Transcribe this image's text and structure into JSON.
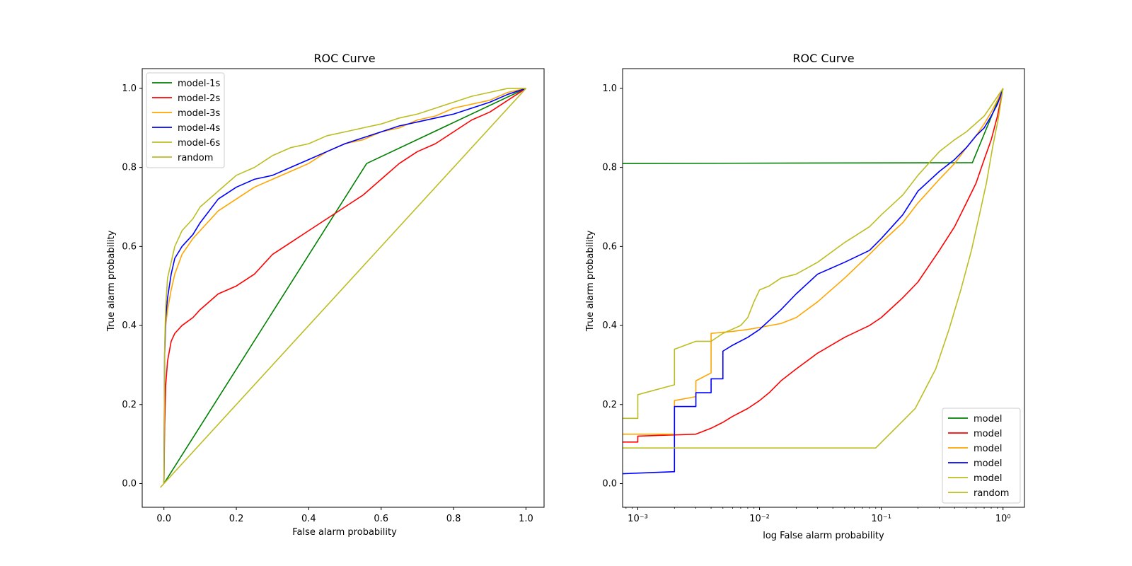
{
  "chart_data": [
    {
      "type": "line",
      "title": "ROC Curve",
      "xlabel": "False alarm probability",
      "ylabel": "True alarm probability",
      "xscale": "linear",
      "xlim": [
        -0.06,
        1.05
      ],
      "ylim": [
        -0.06,
        1.05
      ],
      "xticks": [
        0.0,
        0.2,
        0.4,
        0.6,
        0.8,
        1.0
      ],
      "xtick_labels": [
        "0.0",
        "0.2",
        "0.4",
        "0.6",
        "0.8",
        "1.0"
      ],
      "yticks": [
        0.0,
        0.2,
        0.4,
        0.6,
        0.8,
        1.0
      ],
      "ytick_labels": [
        "0.0",
        "0.2",
        "0.4",
        "0.6",
        "0.8",
        "1.0"
      ],
      "legend_position": "top-left",
      "series": [
        {
          "name": "model-1s",
          "color": "#008000",
          "x": [
            0.0,
            0.56,
            1.0
          ],
          "y": [
            0.0,
            0.81,
            1.0
          ]
        },
        {
          "name": "model-2s",
          "color": "#ff0000",
          "x": [
            0.0,
            0.002,
            0.005,
            0.01,
            0.02,
            0.03,
            0.05,
            0.08,
            0.1,
            0.15,
            0.2,
            0.25,
            0.3,
            0.35,
            0.4,
            0.45,
            0.5,
            0.55,
            0.6,
            0.65,
            0.7,
            0.75,
            0.8,
            0.85,
            0.9,
            0.95,
            1.0
          ],
          "y": [
            0.0,
            0.15,
            0.25,
            0.31,
            0.36,
            0.38,
            0.4,
            0.42,
            0.44,
            0.48,
            0.5,
            0.53,
            0.58,
            0.61,
            0.64,
            0.67,
            0.7,
            0.73,
            0.77,
            0.81,
            0.84,
            0.86,
            0.89,
            0.92,
            0.94,
            0.97,
            1.0
          ]
        },
        {
          "name": "model-3s",
          "color": "#ffa500",
          "x": [
            0.0,
            0.002,
            0.005,
            0.01,
            0.02,
            0.03,
            0.05,
            0.08,
            0.1,
            0.15,
            0.2,
            0.25,
            0.3,
            0.35,
            0.4,
            0.45,
            0.5,
            0.55,
            0.6,
            0.65,
            0.7,
            0.75,
            0.8,
            0.85,
            0.9,
            0.95,
            1.0
          ],
          "y": [
            0.0,
            0.33,
            0.4,
            0.44,
            0.49,
            0.53,
            0.58,
            0.62,
            0.64,
            0.69,
            0.72,
            0.75,
            0.77,
            0.79,
            0.81,
            0.84,
            0.86,
            0.87,
            0.89,
            0.9,
            0.92,
            0.93,
            0.95,
            0.96,
            0.97,
            0.99,
            1.0
          ]
        },
        {
          "name": "model-4s",
          "color": "#0000ff",
          "x": [
            0.0,
            0.002,
            0.005,
            0.01,
            0.02,
            0.03,
            0.05,
            0.08,
            0.1,
            0.15,
            0.2,
            0.25,
            0.3,
            0.35,
            0.4,
            0.45,
            0.5,
            0.55,
            0.6,
            0.65,
            0.7,
            0.75,
            0.8,
            0.85,
            0.9,
            0.95,
            1.0
          ],
          "y": [
            0.0,
            0.33,
            0.42,
            0.47,
            0.53,
            0.57,
            0.6,
            0.63,
            0.66,
            0.72,
            0.75,
            0.77,
            0.78,
            0.8,
            0.82,
            0.84,
            0.86,
            0.875,
            0.89,
            0.905,
            0.915,
            0.925,
            0.935,
            0.95,
            0.965,
            0.985,
            1.0
          ]
        },
        {
          "name": "model-6s",
          "color": "#bcbd22",
          "x": [
            0.0,
            0.002,
            0.005,
            0.01,
            0.02,
            0.03,
            0.05,
            0.08,
            0.1,
            0.15,
            0.2,
            0.25,
            0.3,
            0.35,
            0.4,
            0.45,
            0.5,
            0.55,
            0.6,
            0.65,
            0.7,
            0.75,
            0.8,
            0.85,
            0.9,
            0.95,
            1.0
          ],
          "y": [
            0.0,
            0.35,
            0.45,
            0.52,
            0.56,
            0.6,
            0.64,
            0.67,
            0.7,
            0.74,
            0.78,
            0.8,
            0.83,
            0.85,
            0.86,
            0.88,
            0.89,
            0.9,
            0.91,
            0.925,
            0.935,
            0.95,
            0.965,
            0.98,
            0.99,
            1.0,
            1.0
          ]
        },
        {
          "name": "random",
          "color": "#bcbd22",
          "x": [
            -0.01,
            1.0
          ],
          "y": [
            -0.01,
            1.0
          ]
        }
      ]
    },
    {
      "type": "line",
      "title": "ROC Curve",
      "xlabel": "log False alarm probability",
      "ylabel": "True alarm probability",
      "xscale": "log",
      "xlim": [
        0.00075,
        1.5
      ],
      "ylim": [
        -0.06,
        1.05
      ],
      "xticks": [
        0.001,
        0.01,
        0.1,
        1.0
      ],
      "xtick_labels": [
        "10⁻³",
        "10⁻²",
        "10⁻¹",
        "10⁰"
      ],
      "yticks": [
        0.0,
        0.2,
        0.4,
        0.6,
        0.8,
        1.0
      ],
      "ytick_labels": [
        "0.0",
        "0.2",
        "0.4",
        "0.6",
        "0.8",
        "1.0"
      ],
      "legend_position": "bottom-right",
      "series": [
        {
          "name": "model",
          "color": "#008000",
          "x": [
            0.00075,
            0.56,
            1.0
          ],
          "y": [
            0.81,
            0.812,
            1.0
          ]
        },
        {
          "name": "model",
          "color": "#ff0000",
          "x": [
            0.00075,
            0.001,
            0.001,
            0.003,
            0.004,
            0.005,
            0.006,
            0.008,
            0.01,
            0.012,
            0.015,
            0.02,
            0.03,
            0.05,
            0.08,
            0.1,
            0.15,
            0.2,
            0.3,
            0.4,
            0.5,
            0.6,
            0.7,
            0.8,
            0.9,
            1.0
          ],
          "y": [
            0.105,
            0.105,
            0.12,
            0.125,
            0.14,
            0.155,
            0.17,
            0.19,
            0.21,
            0.23,
            0.26,
            0.29,
            0.33,
            0.37,
            0.4,
            0.42,
            0.47,
            0.51,
            0.59,
            0.65,
            0.71,
            0.76,
            0.82,
            0.87,
            0.93,
            1.0
          ]
        },
        {
          "name": "model",
          "color": "#ffa500",
          "x": [
            0.00075,
            0.002,
            0.002,
            0.003,
            0.003,
            0.004,
            0.004,
            0.006,
            0.008,
            0.01,
            0.015,
            0.02,
            0.03,
            0.05,
            0.08,
            0.1,
            0.15,
            0.2,
            0.3,
            0.4,
            0.5,
            0.6,
            0.7,
            0.8,
            0.9,
            1.0
          ],
          "y": [
            0.125,
            0.125,
            0.21,
            0.22,
            0.26,
            0.28,
            0.38,
            0.385,
            0.39,
            0.395,
            0.405,
            0.42,
            0.46,
            0.52,
            0.58,
            0.61,
            0.66,
            0.71,
            0.77,
            0.81,
            0.85,
            0.88,
            0.91,
            0.94,
            0.97,
            1.0
          ]
        },
        {
          "name": "model",
          "color": "#0000ff",
          "x": [
            0.00075,
            0.002,
            0.002,
            0.003,
            0.003,
            0.004,
            0.004,
            0.005,
            0.005,
            0.006,
            0.008,
            0.01,
            0.015,
            0.02,
            0.03,
            0.05,
            0.08,
            0.1,
            0.15,
            0.2,
            0.3,
            0.4,
            0.5,
            0.6,
            0.7,
            0.8,
            0.9,
            1.0
          ],
          "y": [
            0.025,
            0.03,
            0.195,
            0.195,
            0.23,
            0.23,
            0.265,
            0.265,
            0.335,
            0.35,
            0.37,
            0.39,
            0.44,
            0.48,
            0.53,
            0.56,
            0.59,
            0.62,
            0.68,
            0.74,
            0.79,
            0.82,
            0.85,
            0.88,
            0.9,
            0.93,
            0.96,
            1.0
          ]
        },
        {
          "name": "model",
          "color": "#bcbd22",
          "x": [
            0.00075,
            0.001,
            0.001,
            0.002,
            0.002,
            0.003,
            0.004,
            0.005,
            0.007,
            0.008,
            0.009,
            0.01,
            0.012,
            0.015,
            0.02,
            0.03,
            0.05,
            0.08,
            0.1,
            0.15,
            0.2,
            0.3,
            0.4,
            0.5,
            0.7,
            1.0
          ],
          "y": [
            0.165,
            0.165,
            0.225,
            0.25,
            0.34,
            0.36,
            0.36,
            0.38,
            0.4,
            0.42,
            0.46,
            0.49,
            0.5,
            0.52,
            0.53,
            0.56,
            0.61,
            0.65,
            0.68,
            0.73,
            0.78,
            0.84,
            0.87,
            0.89,
            0.93,
            1.0
          ]
        },
        {
          "name": "random",
          "color": "#bcbd22",
          "x": [
            0.00075,
            0.09,
            0.19,
            0.28,
            0.36,
            0.45,
            0.55,
            0.64,
            0.73,
            0.82,
            0.91,
            1.0
          ],
          "y": [
            0.09,
            0.09,
            0.19,
            0.29,
            0.39,
            0.49,
            0.59,
            0.68,
            0.76,
            0.85,
            0.92,
            1.0
          ]
        }
      ]
    }
  ]
}
